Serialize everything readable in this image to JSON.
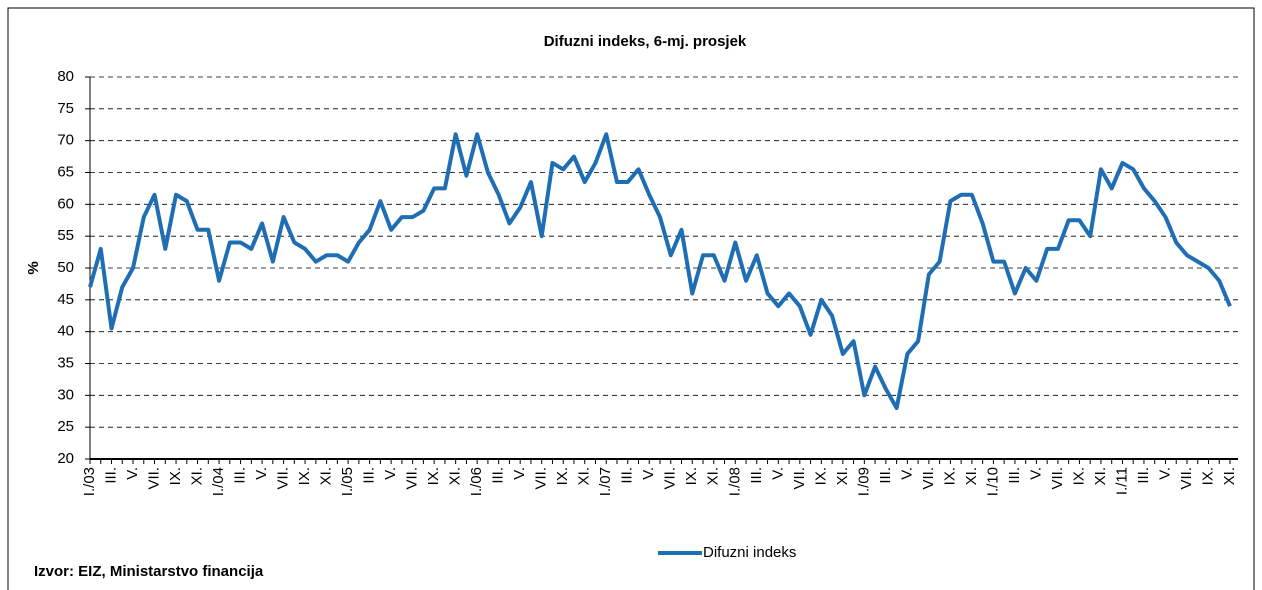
{
  "chart_data": {
    "type": "line",
    "title": "Difuzni indeks, 6-mj. prosjek",
    "ylabel": "%",
    "source": "Izvor: EIZ, Ministarstvo financija",
    "categories": [
      "I./03",
      null,
      "III.",
      null,
      "V.",
      null,
      "VII.",
      null,
      "IX.",
      null,
      "XI.",
      null,
      "I./04",
      null,
      "III.",
      null,
      "V.",
      null,
      "VII.",
      null,
      "IX.",
      null,
      "XI.",
      null,
      "I./05",
      null,
      "III.",
      null,
      "V.",
      null,
      "VII.",
      null,
      "IX.",
      null,
      "XI.",
      null,
      "I./06",
      null,
      "III.",
      null,
      "V.",
      null,
      "VII.",
      null,
      "IX.",
      null,
      "XI.",
      null,
      "I./07",
      null,
      "III.",
      null,
      "V.",
      null,
      "VII.",
      null,
      "IX.",
      null,
      "XI.",
      null,
      "I./08",
      null,
      "III.",
      null,
      "V.",
      null,
      "VII.",
      null,
      "IX.",
      null,
      "XI.",
      null,
      "I./09",
      null,
      "III.",
      null,
      "V.",
      null,
      "VII.",
      null,
      "IX.",
      null,
      "XI.",
      null,
      "I./10",
      null,
      "III.",
      null,
      "V.",
      null,
      "VII.",
      null,
      "IX.",
      null,
      "XI.",
      null,
      "I./11",
      null,
      "III.",
      null,
      "V.",
      null,
      "VII.",
      null,
      "IX.",
      null,
      "XI."
    ],
    "series": [
      {
        "name": "Difuzni indeks",
        "color": "#1f6db3",
        "values": [
          47,
          53,
          40.5,
          47,
          50,
          58,
          61.5,
          53,
          61.5,
          60.5,
          56,
          56,
          48,
          54,
          54,
          53,
          57,
          51,
          58,
          54,
          53,
          51,
          52,
          52,
          51,
          54,
          56,
          60.5,
          56,
          58,
          58,
          59,
          62.5,
          62.5,
          71,
          64.5,
          71,
          65,
          61.5,
          57,
          59.5,
          63.5,
          55,
          66.5,
          65.5,
          67.5,
          63.5,
          66.5,
          71,
          63.5,
          63.5,
          65.5,
          61.5,
          58,
          52,
          56,
          46,
          52,
          52,
          48,
          54,
          48,
          52,
          46,
          44,
          46,
          44,
          39.5,
          45,
          42.5,
          36.5,
          38.5,
          30,
          34.5,
          31,
          28,
          36.5,
          38.5,
          49,
          51,
          60.5,
          61.5,
          61.5,
          57,
          51,
          51,
          46,
          50,
          48,
          53,
          53,
          57.5,
          57.5,
          55,
          65.5,
          62.5,
          66.5,
          65.5,
          62.5,
          60.5,
          58,
          54,
          52,
          51,
          50,
          48,
          44
        ]
      }
    ],
    "ylim": [
      20,
      80
    ],
    "yticks": [
      20,
      25,
      30,
      35,
      40,
      45,
      50,
      55,
      60,
      65,
      70,
      75,
      80
    ],
    "grid": true,
    "legend": "bottom"
  }
}
